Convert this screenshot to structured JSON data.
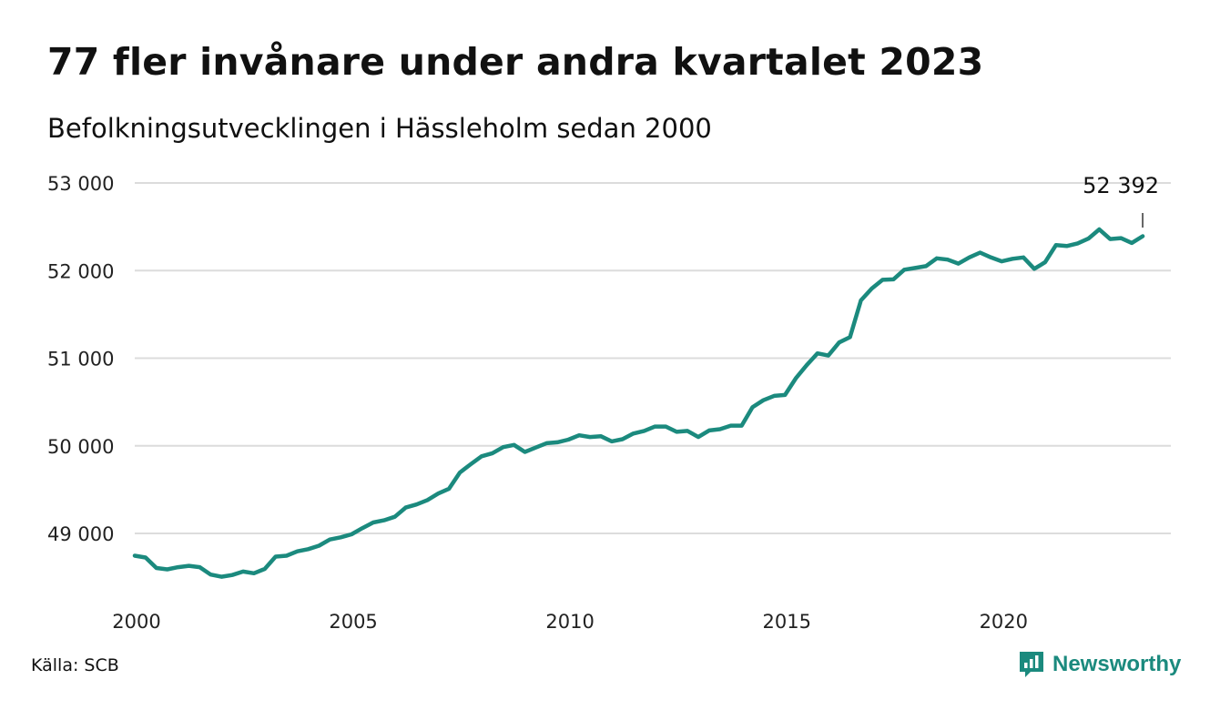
{
  "title": "77 fler invånare under andra kvartalet 2023",
  "subtitle": "Befolkningsutvecklingen i Hässleholm sedan 2000",
  "source": "Källa: SCB",
  "brand": {
    "name": "Newsworthy",
    "icon": "newsworthy-logo-icon",
    "color": "#1b8a7e"
  },
  "chart_data": {
    "type": "line",
    "title": "77 fler invånare under andra kvartalet 2023",
    "subtitle": "Befolkningsutvecklingen i Hässleholm sedan 2000",
    "xlabel": "",
    "ylabel": "",
    "xlim": [
      2000,
      2023.9
    ],
    "ylim": [
      48400,
      53000
    ],
    "x_ticks": [
      2000,
      2005,
      2010,
      2015,
      2020
    ],
    "x_tick_labels": [
      "2000",
      "2005",
      "2010",
      "2015",
      "2020"
    ],
    "y_ticks": [
      49000,
      50000,
      51000,
      52000,
      53000
    ],
    "y_tick_labels": [
      "49 000",
      "50 000",
      "51 000",
      "52 000",
      "53 000"
    ],
    "grid": "horizontal",
    "line_color": "#1b8a7e",
    "annotation": {
      "label": "52 392",
      "x": 2023.25,
      "y": 52392
    },
    "series": [
      {
        "x_start": 2000,
        "x_step": 0.25,
        "values": [
          48745,
          48725,
          48605,
          48590,
          48615,
          48630,
          48615,
          48530,
          48505,
          48525,
          48565,
          48545,
          48595,
          48735,
          48745,
          48795,
          48820,
          48860,
          48930,
          48955,
          48990,
          49060,
          49125,
          49150,
          49190,
          49295,
          49330,
          49380,
          49455,
          49510,
          49695,
          49790,
          49880,
          49915,
          49985,
          50010,
          49930,
          49980,
          50030,
          50040,
          50070,
          50120,
          50100,
          50110,
          50050,
          50075,
          50140,
          50170,
          50220,
          50220,
          50160,
          50170,
          50100,
          50175,
          50190,
          50230,
          50230,
          50440,
          50520,
          50570,
          50580,
          50770,
          50920,
          51055,
          51030,
          51180,
          51240,
          51660,
          51795,
          51895,
          51900,
          52010,
          52030,
          52050,
          52140,
          52125,
          52080,
          52150,
          52205,
          52150,
          52105,
          52135,
          52150,
          52020,
          52095,
          52290,
          52280,
          52310,
          52365,
          52470,
          52360,
          52370,
          52315,
          52392
        ]
      }
    ]
  }
}
